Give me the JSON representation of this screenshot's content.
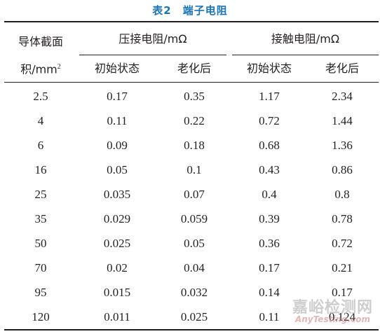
{
  "caption": {
    "number": "表2",
    "title": "端子电阻"
  },
  "header": {
    "col0_line1": "导体截面",
    "col0_line2_prefix": "积/mm",
    "col0_line2_sup": "2",
    "group1": "压接电阻/mΩ",
    "group2": "接触电阻/mΩ",
    "sub": [
      "初始状态",
      "老化后",
      "初始状态",
      "老化后"
    ]
  },
  "rows": [
    [
      "2.5",
      "0.17",
      "0.35",
      "1.17",
      "2.34"
    ],
    [
      "4",
      "0.11",
      "0.22",
      "0.72",
      "1.44"
    ],
    [
      "6",
      "0.09",
      "0.18",
      "0.68",
      "1.36"
    ],
    [
      "16",
      "0.05",
      "0.1",
      "0.43",
      "0.86"
    ],
    [
      "25",
      "0.035",
      "0.07",
      "0.4",
      "0.8"
    ],
    [
      "35",
      "0.029",
      "0.059",
      "0.39",
      "0.78"
    ],
    [
      "50",
      "0.025",
      "0.05",
      "0.36",
      "0.72"
    ],
    [
      "70",
      "0.02",
      "0.04",
      "0.17",
      "0.21"
    ],
    [
      "95",
      "0.015",
      "0.032",
      "0.14",
      "0.17"
    ],
    [
      "120",
      "0.011",
      "0.025",
      "0.11",
      "0.124"
    ]
  ],
  "watermark": {
    "cn": "嘉峪检测网",
    "en": "AnyTesting.com"
  },
  "colors": {
    "caption": "#1a74b8",
    "text": "#231f20"
  }
}
